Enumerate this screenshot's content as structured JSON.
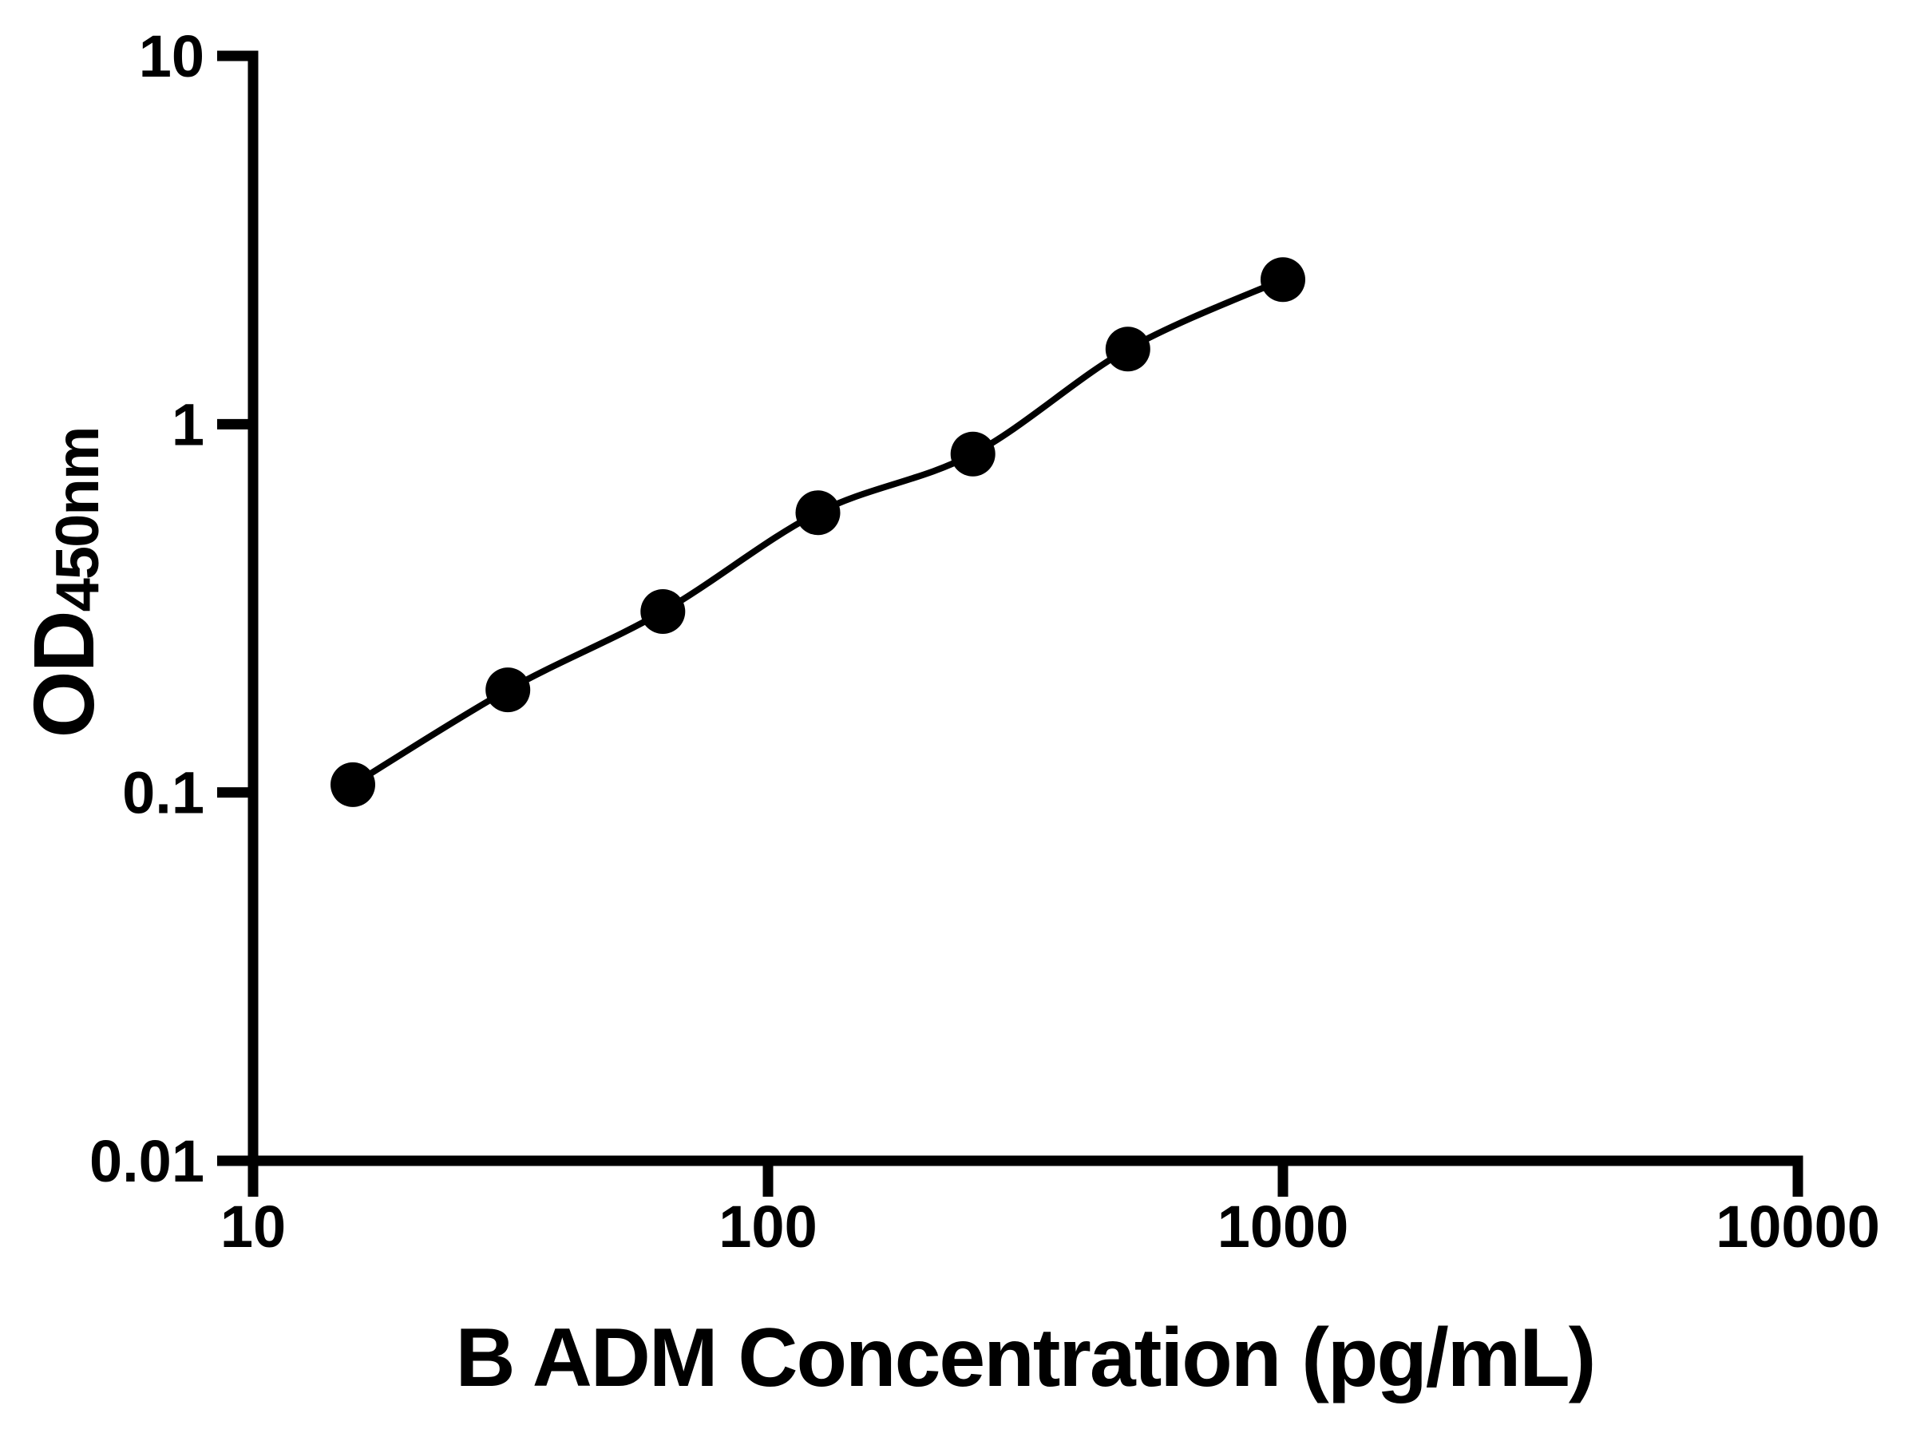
{
  "chart_data": {
    "type": "scatter",
    "title": "",
    "xlabel": "B ADM Concentration (pg/mL)",
    "ylabel": "OD",
    "ylabel_sub": "450nm",
    "x_scale": "log10",
    "y_scale": "log10",
    "xlim": [
      10,
      10000
    ],
    "ylim": [
      0.01,
      10
    ],
    "x_ticks": [
      10,
      100,
      1000,
      10000
    ],
    "x_tick_labels": [
      "10",
      "100",
      "1000",
      "10000"
    ],
    "y_ticks": [
      10,
      1,
      0.1,
      0.01
    ],
    "y_tick_labels": [
      "10",
      "1",
      "0.1",
      "0.01"
    ],
    "grid": false,
    "legend_position": "none",
    "series": [
      {
        "marker": "filled-circle",
        "line": "smooth-fit-curve",
        "color": "#000000",
        "x": [
          15.625,
          31.25,
          62.5,
          125,
          250,
          500,
          1000
        ],
        "y": [
          0.105,
          0.19,
          0.31,
          0.575,
          0.83,
          1.6,
          2.47
        ]
      }
    ]
  },
  "colors": {
    "foreground": "#000000",
    "background": "#ffffff"
  }
}
